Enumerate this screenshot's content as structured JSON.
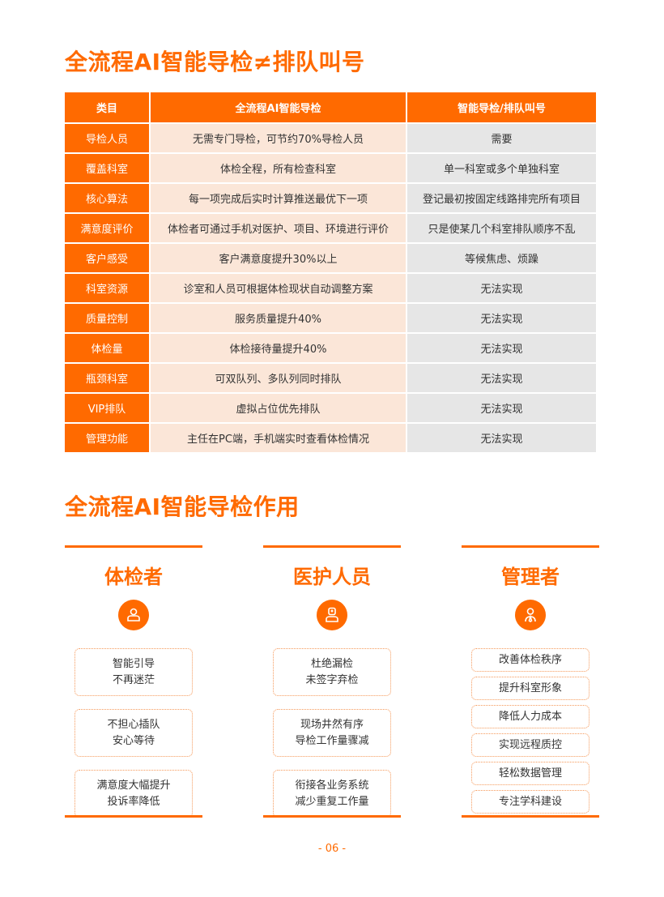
{
  "title1": "全流程AI智能导检≠排队叫号",
  "table": {
    "headers": [
      "类目",
      "全流程AI智能导检",
      "智能导检/排队叫号"
    ],
    "rows": [
      [
        "导检人员",
        "无需专门导检，可节约70%导检人员",
        "需要"
      ],
      [
        "覆盖科室",
        "体检全程，所有检查科室",
        "单一科室或多个单独科室"
      ],
      [
        "核心算法",
        "每一项完成后实时计算推送最优下一项",
        "登记最初按固定线路排完所有项目"
      ],
      [
        "满意度评价",
        "体检者可通过手机对医护、项目、环境进行评价",
        "只是使某几个科室排队顺序不乱"
      ],
      [
        "客户感受",
        "客户满意度提升30%以上",
        "等候焦虑、烦躁"
      ],
      [
        "科室资源",
        "诊室和人员可根据体检现状自动调整方案",
        "无法实现"
      ],
      [
        "质量控制",
        "服务质量提升40%",
        "无法实现"
      ],
      [
        "体检量",
        "体检接待量提升40%",
        "无法实现"
      ],
      [
        "瓶颈科室",
        "可双队列、多队列同时排队",
        "无法实现"
      ],
      [
        "VIP排队",
        "虚拟占位优先排队",
        "无法实现"
      ],
      [
        "管理功能",
        "主任在PC端，手机端实时查看体检情况",
        "无法实现"
      ]
    ]
  },
  "title2": "全流程AI智能导检作用",
  "columns": [
    {
      "head": "体检者",
      "icon": "user-icon",
      "items": [
        [
          "智能引导",
          "不再迷茫"
        ],
        [
          "不担心插队",
          "安心等待"
        ],
        [
          "满意度大幅提升",
          "投诉率降低"
        ]
      ]
    },
    {
      "head": "医护人员",
      "icon": "doctor-icon",
      "items": [
        [
          "杜绝漏检",
          "未签字弃检"
        ],
        [
          "现场井然有序",
          "导检工作量骤减"
        ],
        [
          "衔接各业务系统",
          "减少重复工作量"
        ]
      ]
    },
    {
      "head": "管理者",
      "icon": "manager-icon",
      "items": [
        [
          "改善体检秩序"
        ],
        [
          "提升科室形象"
        ],
        [
          "降低人力成本"
        ],
        [
          "实现远程质控"
        ],
        [
          "轻松数据管理"
        ],
        [
          "专注学科建设"
        ]
      ]
    }
  ],
  "page_number": "- 06 -",
  "colors": {
    "accent": "#FF6A00",
    "row_light": "#FBE6D8",
    "row_gray": "#E6E6E6"
  }
}
